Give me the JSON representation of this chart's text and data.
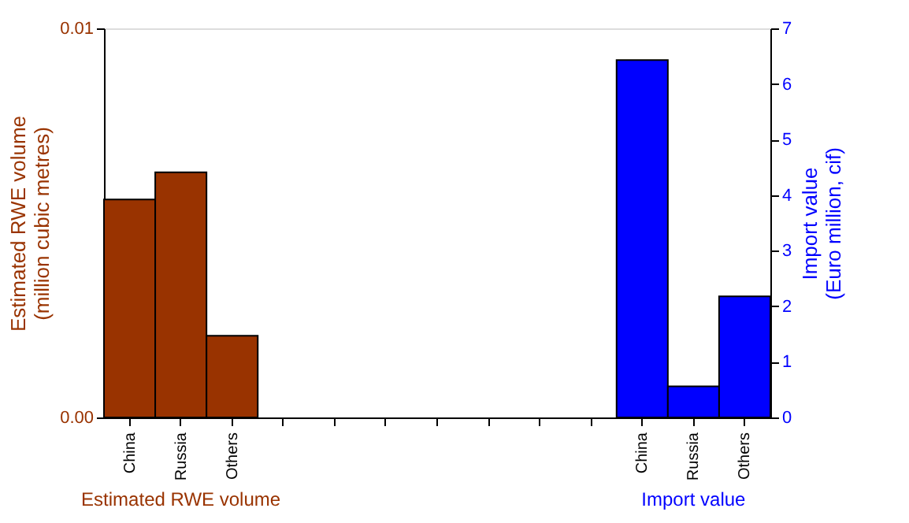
{
  "chart_data": {
    "type": "bar",
    "ylabel": "Estimated RWE volume\n(million cubic metres)",
    "y2label": "Import value\n(Euro million, cif)",
    "categories": [
      "China",
      "Russia",
      "Others",
      null,
      null,
      null,
      null,
      null,
      null,
      null,
      "China",
      "Russia",
      "Others"
    ],
    "series": [
      {
        "name": "Estimated RWE volume",
        "color": "#993300",
        "values": [
          0.0056,
          0.0063,
          0.0021,
          null,
          null,
          null,
          null,
          null,
          null,
          null,
          null,
          null,
          null
        ]
      },
      {
        "name": "Import value",
        "color": "#0000ff",
        "axis": "y2",
        "values": [
          null,
          null,
          null,
          null,
          null,
          null,
          null,
          null,
          null,
          null,
          6.43,
          0.56,
          2.18
        ]
      }
    ],
    "ylim": [
      0,
      0.01
    ],
    "yticks": [
      {
        "value": 0,
        "label": "0.00"
      },
      {
        "value": 0.01,
        "label": "0.01"
      }
    ],
    "y2lim": [
      0,
      7
    ],
    "y2ticks": [
      0,
      1,
      2,
      3,
      4,
      5,
      6,
      7
    ],
    "legend": false
  }
}
